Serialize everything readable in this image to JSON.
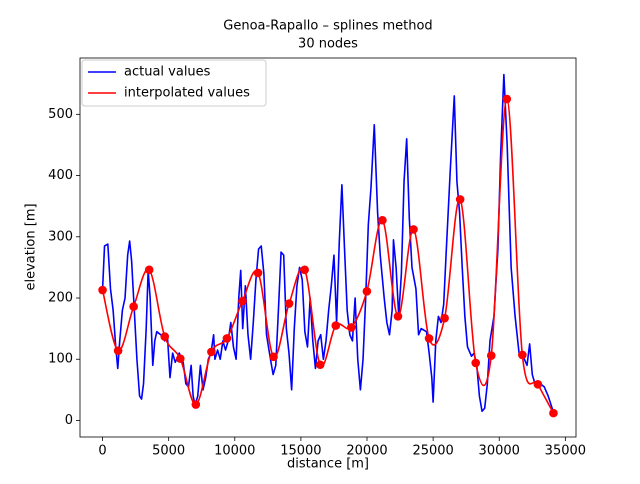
{
  "chart_data": {
    "type": "line",
    "title": "Genoa-Rapallo – splines method",
    "subtitle": "30 nodes",
    "xlabel": "distance [m]",
    "ylabel": "elevation [m]",
    "xlim": [
      -1705,
      35805
    ],
    "ylim": [
      -27,
      592
    ],
    "xticks": [
      0,
      5000,
      10000,
      15000,
      20000,
      25000,
      30000,
      35000
    ],
    "yticks": [
      0,
      100,
      200,
      300,
      400,
      500
    ],
    "legend": "upper left",
    "series": [
      {
        "name": "actual values",
        "color": "#0000ff",
        "smooth": false,
        "marker": false,
        "x": [
          0,
          150,
          400,
          600,
          800,
          1000,
          1150,
          1300,
          1500,
          1700,
          1900,
          2050,
          2200,
          2400,
          2600,
          2800,
          2950,
          3100,
          3300,
          3450,
          3600,
          3800,
          3950,
          4100,
          4400,
          4700,
          4900,
          5100,
          5300,
          5500,
          5800,
          6100,
          6300,
          6500,
          6700,
          6850,
          7000,
          7200,
          7400,
          7600,
          7800,
          8000,
          8200,
          8400,
          8500,
          8700,
          8900,
          9100,
          9300,
          9500,
          9700,
          9900,
          10100,
          10300,
          10450,
          10600,
          10800,
          11000,
          11200,
          11400,
          11600,
          11800,
          12000,
          12200,
          12400,
          12700,
          12900,
          13100,
          13300,
          13500,
          13700,
          13900,
          14100,
          14300,
          14500,
          14700,
          14900,
          15100,
          15300,
          15500,
          15700,
          15900,
          16100,
          16300,
          16500,
          16700,
          16900,
          17100,
          17300,
          17500,
          17700,
          17900,
          18100,
          18300,
          18500,
          18700,
          18900,
          19100,
          19300,
          19500,
          19700,
          19900,
          20100,
          20300,
          20550,
          20800,
          21000,
          21300,
          21500,
          21700,
          21900,
          22000,
          22200,
          22400,
          22600,
          22800,
          23000,
          23200,
          23400,
          23700,
          23900,
          24100,
          24500,
          24700,
          24900,
          25000,
          25200,
          25400,
          25600,
          25800,
          26000,
          26300,
          26600,
          26800,
          27000,
          27200,
          27400,
          27600,
          27900,
          28100,
          28300,
          28500,
          28700,
          28900,
          29100,
          29300,
          29600,
          29900,
          30100,
          30350,
          30600,
          30900,
          31200,
          31500,
          31700,
          31900,
          32100,
          32300,
          32500,
          32700,
          32900,
          33100,
          33400,
          33700,
          34000,
          34100
        ],
        "values": [
          213,
          285,
          288,
          215,
          180,
          120,
          85,
          130,
          180,
          200,
          270,
          293,
          260,
          180,
          100,
          40,
          35,
          60,
          150,
          245,
          200,
          90,
          130,
          145,
          140,
          130,
          140,
          70,
          110,
          95,
          110,
          95,
          60,
          55,
          90,
          40,
          25,
          40,
          90,
          50,
          70,
          100,
          110,
          140,
          100,
          115,
          100,
          130,
          115,
          130,
          160,
          120,
          100,
          200,
          245,
          150,
          220,
          140,
          100,
          160,
          230,
          280,
          285,
          240,
          140,
          100,
          75,
          90,
          180,
          275,
          270,
          150,
          110,
          50,
          150,
          220,
          250,
          230,
          145,
          120,
          200,
          130,
          85,
          130,
          140,
          100,
          130,
          180,
          220,
          270,
          160,
          290,
          385,
          280,
          180,
          140,
          130,
          200,
          100,
          50,
          100,
          200,
          320,
          380,
          483,
          340,
          270,
          200,
          160,
          140,
          180,
          295,
          250,
          170,
          240,
          390,
          460,
          330,
          250,
          215,
          140,
          150,
          145,
          110,
          70,
          30,
          130,
          170,
          160,
          190,
          280,
          410,
          530,
          390,
          340,
          250,
          170,
          120,
          105,
          110,
          90,
          40,
          15,
          20,
          60,
          130,
          170,
          280,
          430,
          565,
          450,
          250,
          170,
          110,
          110,
          100,
          90,
          125,
          75,
          60,
          60,
          60,
          55,
          40,
          20,
          12
        ]
      },
      {
        "name": "interpolated values",
        "color": "#ff0000",
        "smooth": true,
        "marker": true,
        "x": [
          0,
          1176,
          2352,
          3528,
          4703,
          5879,
          7055,
          8231,
          9407,
          10583,
          11759,
          12934,
          14110,
          15286,
          16462,
          17638,
          18814,
          19990,
          21166,
          22341,
          23517,
          24693,
          25869,
          27045,
          28221,
          29397,
          30572,
          31748,
          32924,
          34100
        ],
        "values": [
          213,
          114,
          186,
          246,
          137,
          101,
          26,
          112,
          134,
          195,
          241,
          104,
          191,
          246,
          91,
          155,
          152,
          211,
          327,
          170,
          312,
          134,
          167,
          361,
          94,
          106,
          525,
          107,
          59,
          12
        ]
      }
    ]
  }
}
